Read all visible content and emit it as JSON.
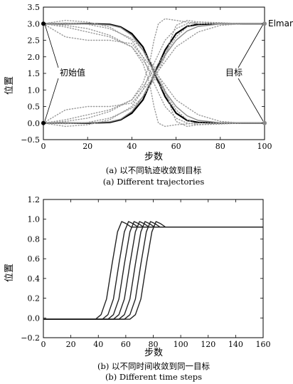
{
  "chart_data": [
    {
      "type": "line",
      "xlabel": "步数",
      "ylabel": "位置",
      "xlim": [
        0,
        100
      ],
      "ylim": [
        -0.5,
        3.5
      ],
      "xticks": [
        "0",
        "20",
        "40",
        "60",
        "80",
        "100"
      ],
      "yticks": [
        "−0.5",
        "0.0",
        "0.5",
        "1.0",
        "1.5",
        "2.0",
        "2.5",
        "3.0",
        "3.5"
      ],
      "caption_cn": "(a) 以不同轨迹收敛到目标",
      "caption_en": "(a) Different trajectories",
      "annotations": {
        "start": "初始值",
        "goal": "目标",
        "right_label": "Elman"
      },
      "start_values": [
        3.0,
        0.0
      ],
      "goal_values": [
        3.0,
        0.0
      ],
      "series": [
        {
          "color": "#000000",
          "style": "solid",
          "x": [
            0,
            10,
            20,
            30,
            35,
            40,
            45,
            50,
            55,
            60,
            65,
            70,
            80,
            90,
            100
          ],
          "values": [
            3.0,
            3.0,
            3.0,
            2.98,
            2.9,
            2.7,
            2.3,
            1.55,
            0.8,
            0.3,
            0.08,
            0.02,
            0.0,
            0.0,
            0.0
          ]
        },
        {
          "color": "#000000",
          "style": "solid",
          "x": [
            0,
            10,
            20,
            30,
            35,
            40,
            45,
            50,
            55,
            60,
            65,
            70,
            80,
            90,
            100
          ],
          "values": [
            0.0,
            0.0,
            0.0,
            0.02,
            0.1,
            0.3,
            0.7,
            1.45,
            2.2,
            2.7,
            2.92,
            2.98,
            3.0,
            3.0,
            3.0
          ]
        },
        {
          "color": "#888888",
          "style": "solid",
          "x": [
            0,
            10,
            20,
            30,
            35,
            40,
            45,
            50,
            55,
            60,
            65,
            70,
            80,
            90,
            100
          ],
          "values": [
            3.0,
            3.0,
            2.99,
            2.96,
            2.88,
            2.65,
            2.2,
            1.55,
            0.95,
            0.5,
            0.22,
            0.08,
            0.01,
            0.0,
            0.0
          ]
        },
        {
          "color": "#888888",
          "style": "solid",
          "x": [
            0,
            10,
            20,
            30,
            35,
            40,
            45,
            50,
            55,
            60,
            65,
            70,
            80,
            90,
            100
          ],
          "values": [
            0.0,
            0.0,
            0.01,
            0.04,
            0.12,
            0.35,
            0.8,
            1.45,
            2.05,
            2.5,
            2.78,
            2.92,
            2.99,
            3.0,
            3.0
          ]
        },
        {
          "color": "#999999",
          "style": "dotted",
          "x": [
            0,
            10,
            20,
            30,
            40,
            45,
            50,
            55,
            60,
            65,
            70,
            80,
            90,
            100
          ],
          "values": [
            3.0,
            3.1,
            3.05,
            2.9,
            2.5,
            2.0,
            1.2,
            0.5,
            0.15,
            0.0,
            -0.05,
            -0.02,
            0.0,
            0.0
          ]
        },
        {
          "color": "#999999",
          "style": "dotted",
          "x": [
            0,
            10,
            20,
            30,
            40,
            45,
            50,
            55,
            60,
            65,
            70,
            80,
            90,
            100
          ],
          "values": [
            0.0,
            -0.1,
            -0.05,
            0.1,
            0.5,
            1.0,
            1.8,
            2.5,
            2.85,
            3.0,
            3.05,
            3.02,
            3.0,
            3.0
          ]
        },
        {
          "color": "#999999",
          "style": "dotted",
          "x": [
            0,
            10,
            20,
            30,
            40,
            45,
            50,
            55,
            60,
            65,
            70,
            80,
            90,
            100
          ],
          "values": [
            3.0,
            2.9,
            2.75,
            2.6,
            2.3,
            1.9,
            1.4,
            0.9,
            0.4,
            0.1,
            -0.05,
            -0.03,
            0.0,
            0.0
          ]
        },
        {
          "color": "#999999",
          "style": "dotted",
          "x": [
            0,
            10,
            20,
            30,
            40,
            45,
            50,
            55,
            60,
            65,
            70,
            80,
            90,
            100
          ],
          "values": [
            0.0,
            0.1,
            0.25,
            0.4,
            0.7,
            1.1,
            1.6,
            2.1,
            2.6,
            2.9,
            3.05,
            3.03,
            3.0,
            3.0
          ]
        },
        {
          "color": "#999999",
          "style": "dotted",
          "x": [
            0,
            10,
            20,
            30,
            40,
            45,
            48,
            50,
            52,
            55,
            60,
            70,
            80,
            90,
            100
          ],
          "values": [
            3.0,
            2.95,
            2.85,
            2.65,
            2.3,
            1.8,
            1.2,
            0.5,
            0.0,
            -0.1,
            -0.05,
            0.0,
            0.0,
            0.0,
            0.0
          ]
        },
        {
          "color": "#999999",
          "style": "dotted",
          "x": [
            0,
            10,
            20,
            30,
            40,
            45,
            48,
            50,
            52,
            55,
            60,
            70,
            80,
            90,
            100
          ],
          "values": [
            0.0,
            0.05,
            0.15,
            0.35,
            0.7,
            1.2,
            1.8,
            2.5,
            3.0,
            3.15,
            3.1,
            3.0,
            3.0,
            3.0,
            3.0
          ]
        },
        {
          "color": "#999999",
          "style": "dotted",
          "x": [
            0,
            10,
            20,
            30,
            40,
            45,
            50,
            55,
            58,
            60,
            65,
            70,
            80,
            90,
            100
          ],
          "values": [
            3.0,
            3.02,
            2.98,
            2.85,
            2.55,
            2.2,
            1.7,
            1.0,
            0.4,
            0.05,
            -0.1,
            -0.05,
            0.0,
            0.0,
            0.0
          ]
        },
        {
          "color": "#999999",
          "style": "dotted",
          "x": [
            0,
            10,
            20,
            30,
            40,
            45,
            50,
            55,
            58,
            60,
            65,
            70,
            80,
            90,
            100
          ],
          "values": [
            0.0,
            -0.02,
            0.02,
            0.15,
            0.45,
            0.8,
            1.3,
            2.0,
            2.6,
            2.95,
            3.1,
            3.05,
            3.0,
            3.0,
            3.0
          ]
        },
        {
          "color": "#999999",
          "style": "dotted",
          "x": [
            0,
            5,
            10,
            20,
            30,
            40,
            50,
            60,
            70,
            80,
            90,
            100
          ],
          "values": [
            3.0,
            2.8,
            2.6,
            2.5,
            2.5,
            2.4,
            1.6,
            0.7,
            0.25,
            0.05,
            0.0,
            0.0
          ]
        },
        {
          "color": "#999999",
          "style": "dotted",
          "x": [
            0,
            5,
            10,
            20,
            30,
            40,
            50,
            60,
            70,
            80,
            90,
            100
          ],
          "values": [
            0.0,
            0.2,
            0.4,
            0.5,
            0.5,
            0.6,
            1.4,
            2.3,
            2.75,
            2.95,
            3.0,
            3.0
          ]
        }
      ]
    },
    {
      "type": "line",
      "xlabel": "步数",
      "ylabel": "位置",
      "xlim": [
        0,
        160
      ],
      "ylim": [
        -0.2,
        1.3
      ],
      "xticks": [
        "0",
        "20",
        "40",
        "60",
        "80",
        "100",
        "120",
        "140",
        "160"
      ],
      "yticks": [
        "−0.2",
        "0.0",
        "0.2",
        "0.4",
        "0.6",
        "0.8",
        "1.0",
        "1.2"
      ],
      "caption_cn": "(b) 以不同时间收敛到同一目标",
      "caption_en": "(b) Different time steps",
      "series": [
        {
          "color": "#222222",
          "style": "solid",
          "x": [
            0,
            38,
            42,
            46,
            50,
            54,
            57,
            60,
            64,
            70,
            80,
            160
          ],
          "values": [
            0,
            0,
            0.05,
            0.22,
            0.6,
            0.95,
            1.06,
            1.04,
            1.0,
            1.0,
            1.0,
            1.0
          ]
        },
        {
          "color": "#222222",
          "style": "solid",
          "x": [
            0,
            43,
            47,
            51,
            55,
            59,
            62,
            65,
            69,
            75,
            85,
            160
          ],
          "values": [
            0,
            0,
            0.05,
            0.22,
            0.6,
            0.95,
            1.06,
            1.04,
            1.0,
            1.0,
            1.0,
            1.0
          ]
        },
        {
          "color": "#222222",
          "style": "solid",
          "x": [
            0,
            47,
            51,
            55,
            59,
            63,
            66,
            69,
            73,
            79,
            89,
            160
          ],
          "values": [
            0,
            0,
            0.05,
            0.22,
            0.6,
            0.95,
            1.06,
            1.04,
            1.0,
            1.0,
            1.0,
            1.0
          ]
        },
        {
          "color": "#222222",
          "style": "solid",
          "x": [
            0,
            51,
            55,
            59,
            63,
            67,
            70,
            73,
            77,
            83,
            93,
            160
          ],
          "values": [
            0,
            0,
            0.05,
            0.22,
            0.6,
            0.95,
            1.06,
            1.04,
            1.0,
            1.0,
            1.0,
            1.0
          ]
        },
        {
          "color": "#222222",
          "style": "solid",
          "x": [
            0,
            55,
            59,
            63,
            67,
            71,
            74,
            77,
            81,
            87,
            97,
            160
          ],
          "values": [
            0,
            0,
            0.05,
            0.22,
            0.6,
            0.95,
            1.06,
            1.04,
            1.0,
            1.0,
            1.0,
            1.0
          ]
        },
        {
          "color": "#222222",
          "style": "solid",
          "x": [
            0,
            59,
            63,
            67,
            71,
            75,
            78,
            81,
            85,
            91,
            101,
            160
          ],
          "values": [
            0,
            0,
            0.05,
            0.22,
            0.6,
            0.95,
            1.06,
            1.04,
            1.0,
            1.0,
            1.0,
            1.0
          ]
        },
        {
          "color": "#222222",
          "style": "solid",
          "x": [
            0,
            63,
            67,
            71,
            75,
            79,
            82,
            85,
            89,
            95,
            105,
            160
          ],
          "values": [
            0,
            0,
            0.05,
            0.22,
            0.6,
            0.95,
            1.06,
            1.04,
            1.0,
            1.0,
            1.0,
            1.0
          ]
        }
      ]
    }
  ]
}
